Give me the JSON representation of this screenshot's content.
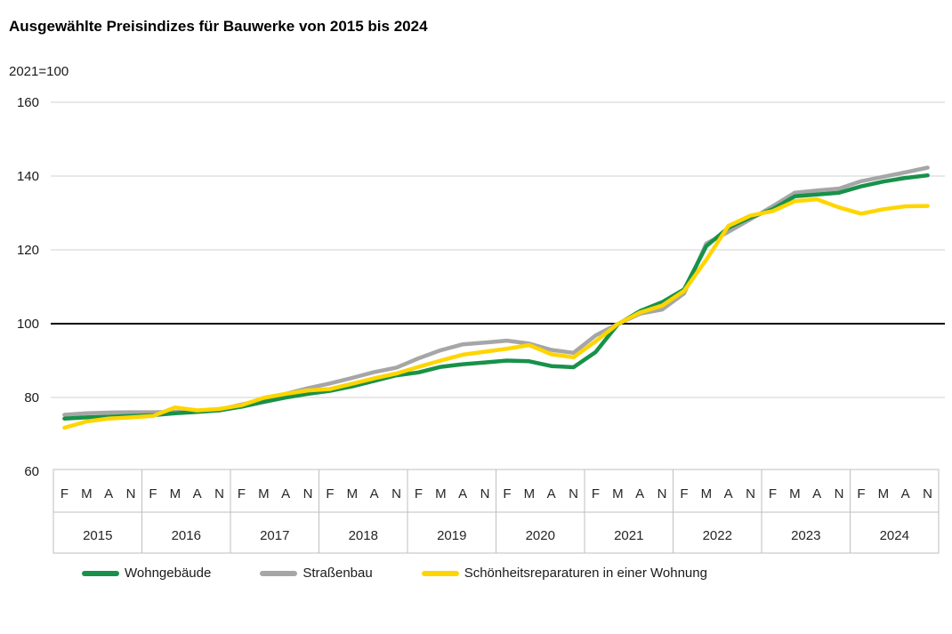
{
  "header": {
    "title": "Ausgewählte Preisindizes für Bauwerke von 2015 bis 2024",
    "subtitle": "2021=100"
  },
  "chart_data": {
    "type": "line",
    "title": "Ausgewählte Preisindizes für Bauwerke von 2015 bis 2024",
    "subtitle": "2021=100",
    "ylim": [
      60,
      160
    ],
    "yticks": [
      60,
      80,
      100,
      120,
      140,
      160
    ],
    "baseline_value": 100,
    "grid": true,
    "legend_position": "bottom",
    "x_structure": {
      "years": [
        "2015",
        "2016",
        "2017",
        "2018",
        "2019",
        "2020",
        "2021",
        "2022",
        "2023",
        "2024"
      ],
      "quarter_labels": [
        "F",
        "M",
        "A",
        "N"
      ]
    },
    "series": [
      {
        "id": "wohngebaeude",
        "name": "Wohngebäude",
        "color": "#18914a",
        "values": [
          74.3,
          74.6,
          74.8,
          75.0,
          75.2,
          75.7,
          76.1,
          76.5,
          77.5,
          78.8,
          80.0,
          81.0,
          81.8,
          83.0,
          84.5,
          86.0,
          86.8,
          88.3,
          89.0,
          89.5,
          90.0,
          89.8,
          88.5,
          88.2,
          92.3,
          99.8,
          103.4,
          105.8,
          109.3,
          121.0,
          126.0,
          128.8,
          131.0,
          134.5,
          135.0,
          135.5,
          137.2,
          138.5,
          139.5,
          140.2
        ]
      },
      {
        "id": "strassenbau",
        "name": "Straßenbau",
        "color": "#a6a6a6",
        "values": [
          75.3,
          75.7,
          75.9,
          76.0,
          76.0,
          76.1,
          76.3,
          76.7,
          78.1,
          79.4,
          81.0,
          82.5,
          83.8,
          85.3,
          86.9,
          88.1,
          90.6,
          92.8,
          94.4,
          94.9,
          95.4,
          94.6,
          92.9,
          92.1,
          96.8,
          99.9,
          102.7,
          103.8,
          108.2,
          121.7,
          124.9,
          128.3,
          131.8,
          135.5,
          136.1,
          136.6,
          138.6,
          139.8,
          141.0,
          142.3
        ]
      },
      {
        "id": "schoenheitsreparaturen",
        "name": "Schönheitsreparaturen in einer Wohnung",
        "color": "#ffd500",
        "values": [
          71.8,
          73.5,
          74.3,
          74.6,
          75.0,
          77.3,
          76.5,
          76.9,
          77.9,
          79.9,
          81.0,
          81.9,
          82.3,
          83.7,
          85.2,
          86.5,
          88.3,
          90.0,
          91.6,
          92.4,
          93.2,
          94.2,
          91.7,
          90.9,
          95.2,
          99.9,
          103.0,
          104.9,
          108.9,
          117.3,
          126.5,
          129.3,
          130.5,
          133.2,
          133.7,
          131.5,
          129.8,
          131.0,
          131.8,
          131.9
        ]
      }
    ],
    "style": {
      "gridline_color": "#d9d9d9",
      "baseline_color": "#000000",
      "table_border_color": "#bfbfbf",
      "axis_text_color": "#262626"
    }
  }
}
